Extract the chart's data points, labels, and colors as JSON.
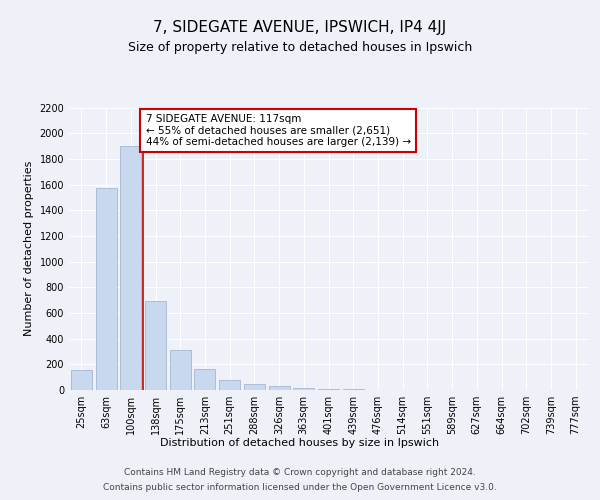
{
  "title": "7, SIDEGATE AVENUE, IPSWICH, IP4 4JJ",
  "subtitle": "Size of property relative to detached houses in Ipswich",
  "xlabel": "Distribution of detached houses by size in Ipswich",
  "ylabel": "Number of detached properties",
  "categories": [
    "25sqm",
    "63sqm",
    "100sqm",
    "138sqm",
    "175sqm",
    "213sqm",
    "251sqm",
    "288sqm",
    "326sqm",
    "363sqm",
    "401sqm",
    "439sqm",
    "476sqm",
    "514sqm",
    "551sqm",
    "589sqm",
    "627sqm",
    "664sqm",
    "702sqm",
    "739sqm",
    "777sqm"
  ],
  "values": [
    155,
    1575,
    1900,
    690,
    315,
    160,
    80,
    45,
    28,
    18,
    10,
    5,
    3,
    2,
    1,
    1,
    0,
    0,
    0,
    0,
    0
  ],
  "bar_color": "#c8d8ee",
  "bar_edge_color": "#9ab0cc",
  "vline_x": 2.5,
  "vline_color": "#cc0000",
  "annotation_text": "7 SIDEGATE AVENUE: 117sqm\n← 55% of detached houses are smaller (2,651)\n44% of semi-detached houses are larger (2,139) →",
  "annotation_box_color": "#ffffff",
  "annotation_box_edge": "#cc0000",
  "ylim": [
    0,
    2200
  ],
  "yticks": [
    0,
    200,
    400,
    600,
    800,
    1000,
    1200,
    1400,
    1600,
    1800,
    2000,
    2200
  ],
  "footer_line1": "Contains HM Land Registry data © Crown copyright and database right 2024.",
  "footer_line2": "Contains public sector information licensed under the Open Government Licence v3.0.",
  "bg_color": "#eef2f8",
  "plot_bg_color": "#eef2f8",
  "title_fontsize": 11,
  "subtitle_fontsize": 9,
  "axis_label_fontsize": 8,
  "tick_fontsize": 7,
  "footer_fontsize": 6.5,
  "annotation_fontsize": 7.5
}
